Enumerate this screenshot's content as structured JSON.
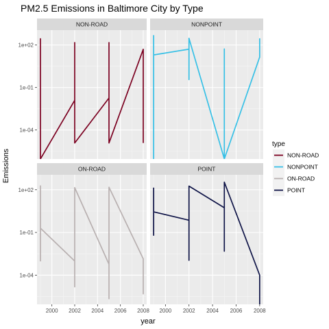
{
  "chart_data": {
    "type": "line",
    "title": "PM2.5 Emissions in Baltimore City by Type",
    "xlabel": "year",
    "ylabel": "Emissions",
    "y_scale": "log10",
    "x_ticks": [
      2000,
      2002,
      2004,
      2006,
      2008
    ],
    "y_ticks": [
      {
        "value": 0.0001,
        "label": "1e-04"
      },
      {
        "value": 0.1,
        "label": "1e-01"
      },
      {
        "value": 100,
        "label": "1e+02"
      }
    ],
    "xlim": [
      1998.7,
      2008.3
    ],
    "ylim_log10": [
      -6.05,
      3.05
    ],
    "grid": true,
    "facets": [
      "NON-ROAD",
      "NONPOINT",
      "ON-ROAD",
      "POINT"
    ],
    "legend": {
      "title": "type",
      "position": "right",
      "entries": [
        "NON-ROAD",
        "NONPOINT",
        "ON-ROAD",
        "POINT"
      ]
    },
    "series": [
      {
        "name": "NON-ROAD",
        "color": "#7b0020",
        "x": [
          1999,
          1999,
          2002,
          2002,
          2002,
          2005,
          2005,
          2005,
          2008,
          2008
        ],
        "y": [
          300,
          9e-07,
          0.0126,
          150,
          1.2e-05,
          0.0182,
          150,
          1.2e-05,
          50,
          1.2e-05
        ]
      },
      {
        "name": "NONPOINT",
        "color": "#36c0e6",
        "x": [
          1999,
          1999,
          1999,
          2002,
          2002,
          2002,
          2005,
          2005,
          2005,
          2008,
          2008
        ],
        "y": [
          500,
          9e-07,
          20,
          51,
          0.36,
          300,
          9e-07,
          53,
          9e-07,
          14,
          300
        ]
      },
      {
        "name": "ON-ROAD",
        "color": "#b8b0b0",
        "x": [
          1999,
          1999,
          1999,
          2002,
          2002,
          2002,
          2005,
          2005,
          2005,
          2008,
          2008
        ],
        "y": [
          200,
          0.001,
          0.2,
          0.00098,
          1.5e-05,
          140,
          0.00058,
          2.2e-06,
          150,
          0.0014,
          4.5e-06
        ]
      },
      {
        "name": "POINT",
        "color": "#0f1447",
        "x": [
          1999,
          1999,
          1999,
          2002,
          2002,
          2002,
          2005,
          2005,
          2005,
          2008,
          2008
        ],
        "y": [
          140,
          0.063,
          2.8,
          0.72,
          0.0011,
          180,
          5.4,
          0.0048,
          340,
          0.0001,
          6e-07
        ]
      }
    ]
  }
}
